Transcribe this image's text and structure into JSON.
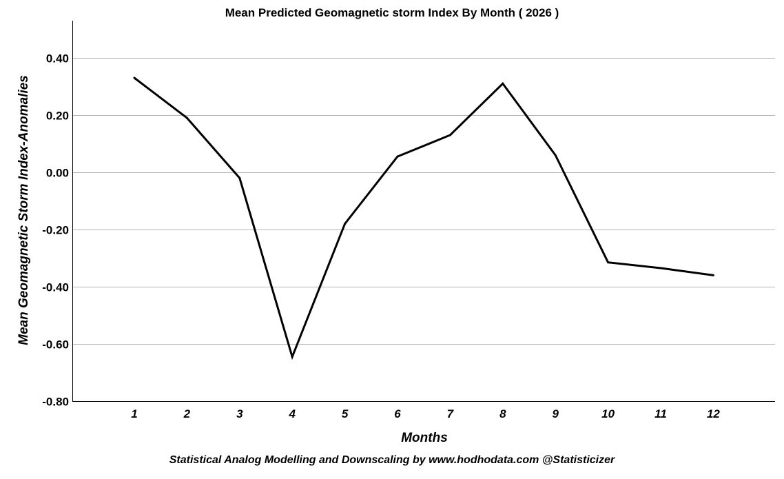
{
  "chart_data": {
    "type": "line",
    "title": "Mean Predicted Geomagnetic storm Index By  Month ( 2026 )",
    "xlabel": "Months",
    "ylabel": "Mean  Geomagnetic Storm Index-Anomalies",
    "categories": [
      "1",
      "2",
      "3",
      "4",
      "5",
      "6",
      "7",
      "8",
      "9",
      "10",
      "11",
      "12"
    ],
    "series": [
      {
        "values": [
          0.33,
          0.19,
          -0.02,
          -0.645,
          -0.18,
          0.055,
          0.13,
          0.31,
          0.06,
          -0.315,
          -0.335,
          -0.36
        ]
      }
    ],
    "ylim": [
      -0.8,
      0.53
    ],
    "y_ticks": [
      "-0.80",
      "-0.60",
      "-0.40",
      "-0.20",
      "0.00",
      "0.20",
      "0.40"
    ],
    "y_tick_values": [
      -0.8,
      -0.6,
      -0.4,
      -0.2,
      0.0,
      0.2,
      0.4
    ],
    "grid": true,
    "line_color": "#000000",
    "grid_color": "#b4b4b4"
  },
  "footer": {
    "note": "Statistical Analog Modelling and Downscaling by www.hodhodata.com  @Statisticizer"
  }
}
